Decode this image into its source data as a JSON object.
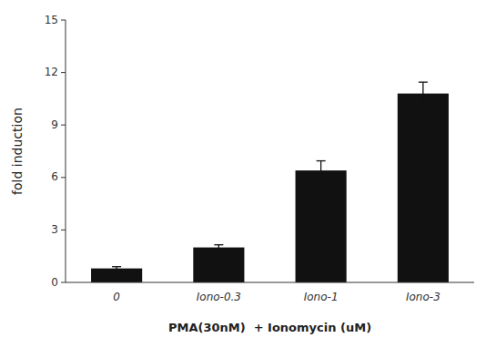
{
  "chart_data": {
    "type": "bar",
    "categories": [
      "0",
      "Iono-0.3",
      "Iono-1",
      "Iono-3"
    ],
    "values": [
      0.8,
      2.0,
      6.4,
      10.8
    ],
    "errors": [
      0.1,
      0.15,
      0.55,
      0.65
    ],
    "color": "#111111",
    "ylabel": "fold induction",
    "xlabel": "PMA(30nM)  + Ionomycin (uM)",
    "ylim": [
      0,
      15
    ],
    "yticks": [
      0,
      3,
      6,
      9,
      12,
      15
    ],
    "grid": false
  }
}
